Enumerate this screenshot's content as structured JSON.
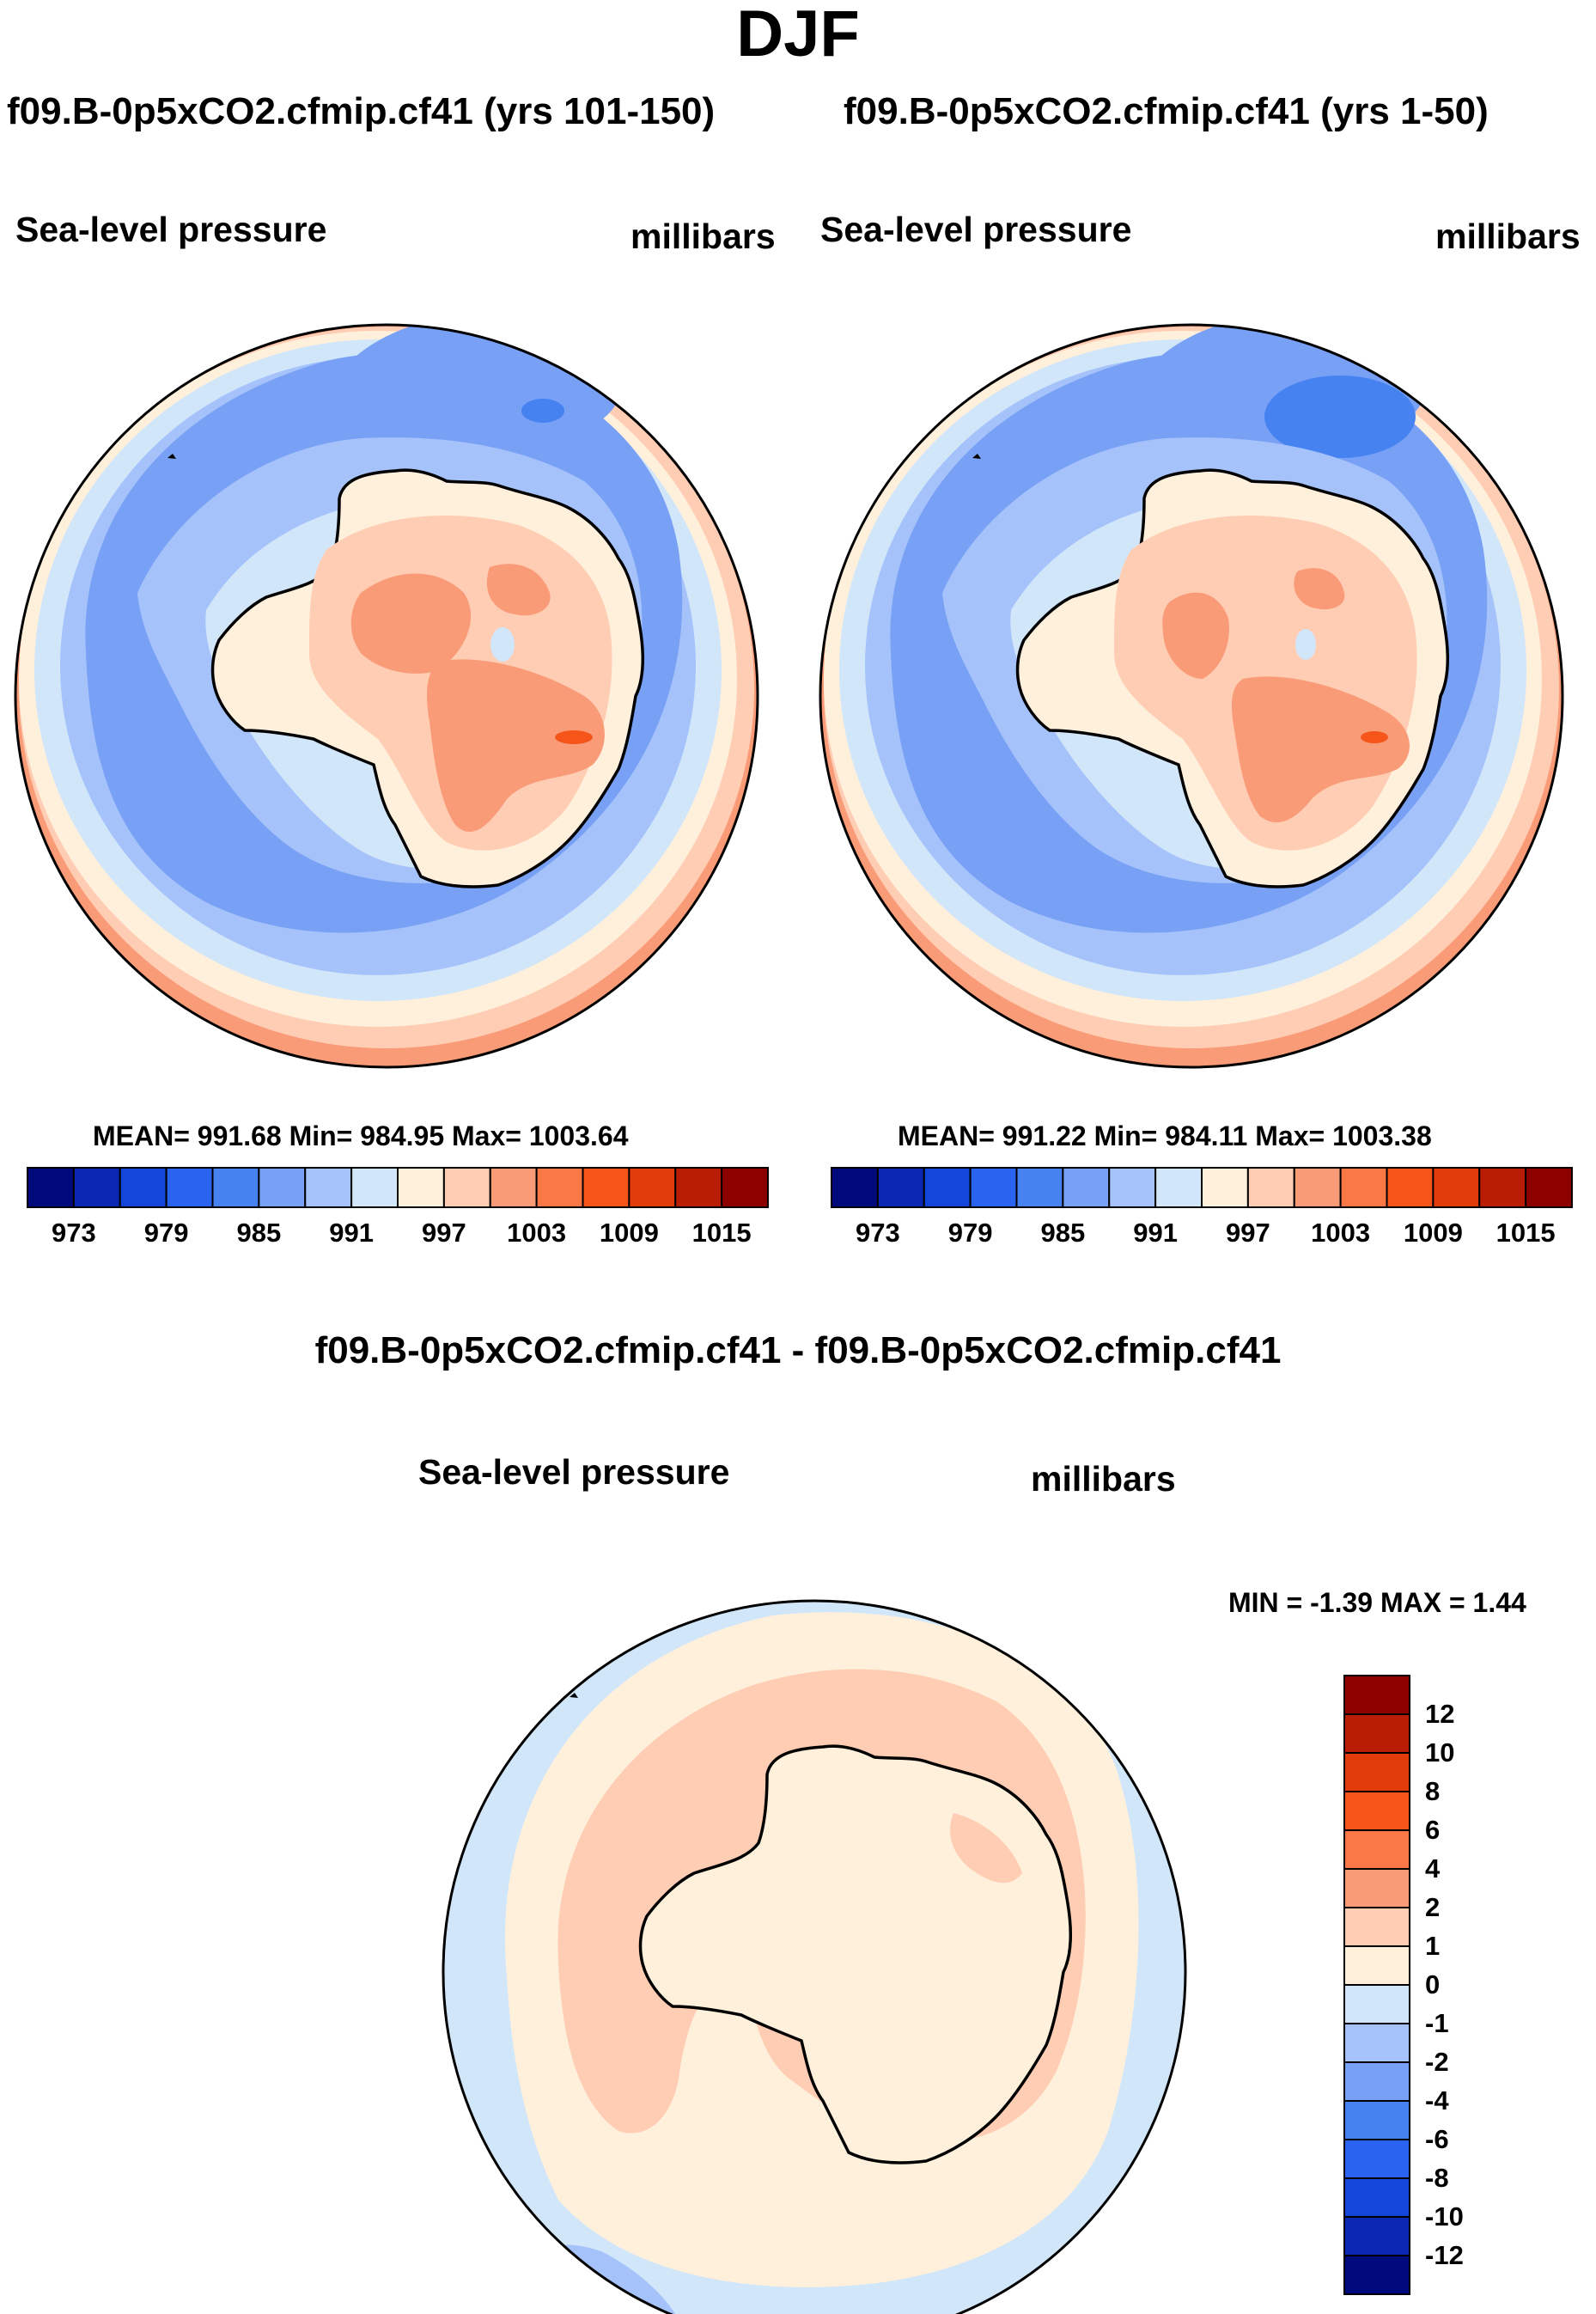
{
  "title": "DJF",
  "panels": [
    {
      "title": "f09.B-0p5xCO2.cfmip.cf41 (yrs 101-150)",
      "variable": "Sea-level pressure",
      "units": "millibars",
      "stats": "MEAN= 991.68  Min= 984.95  Max= 1003.64"
    },
    {
      "title": "f09.B-0p5xCO2.cfmip.cf41 (yrs 1-50)",
      "variable": "Sea-level pressure",
      "units": "millibars",
      "stats": "MEAN= 991.22  Min= 984.11  Max= 1003.38"
    }
  ],
  "diff": {
    "title": "f09.B-0p5xCO2.cfmip.cf41 - f09.B-0p5xCO2.cfmip.cf41",
    "variable": "Sea-level pressure",
    "units": "millibars",
    "stats": "MIN =   -1.39 MAX =    1.44"
  },
  "colorbar": {
    "colors": [
      "#000a7d",
      "#0a28b4",
      "#1446dc",
      "#2864f0",
      "#4682f0",
      "#78a0f5",
      "#a5c3fa",
      "#d2e6fa",
      "#fff0dc",
      "#ffcdb4",
      "#fa9b78",
      "#fa7846",
      "#f55519",
      "#e13c0a",
      "#b91e05",
      "#8c0000"
    ],
    "labels": [
      "973",
      "979",
      "985",
      "991",
      "997",
      "1003",
      "1009",
      "1015"
    ]
  },
  "diff_colorbar": {
    "colors_top_to_bottom": [
      "#8c0000",
      "#b91e05",
      "#e13c0a",
      "#f55519",
      "#fa7846",
      "#fa9b78",
      "#ffcdb4",
      "#fff0dc",
      "#d2e6fa",
      "#a5c3fa",
      "#78a0f5",
      "#4682f0",
      "#2864f0",
      "#1446dc",
      "#0a28b4",
      "#000a7d"
    ],
    "labels": [
      "12",
      "10",
      "8",
      "6",
      "4",
      "2",
      "1",
      "0",
      "-1",
      "-2",
      "-4",
      "-6",
      "-8",
      "-10",
      "-12"
    ]
  }
}
